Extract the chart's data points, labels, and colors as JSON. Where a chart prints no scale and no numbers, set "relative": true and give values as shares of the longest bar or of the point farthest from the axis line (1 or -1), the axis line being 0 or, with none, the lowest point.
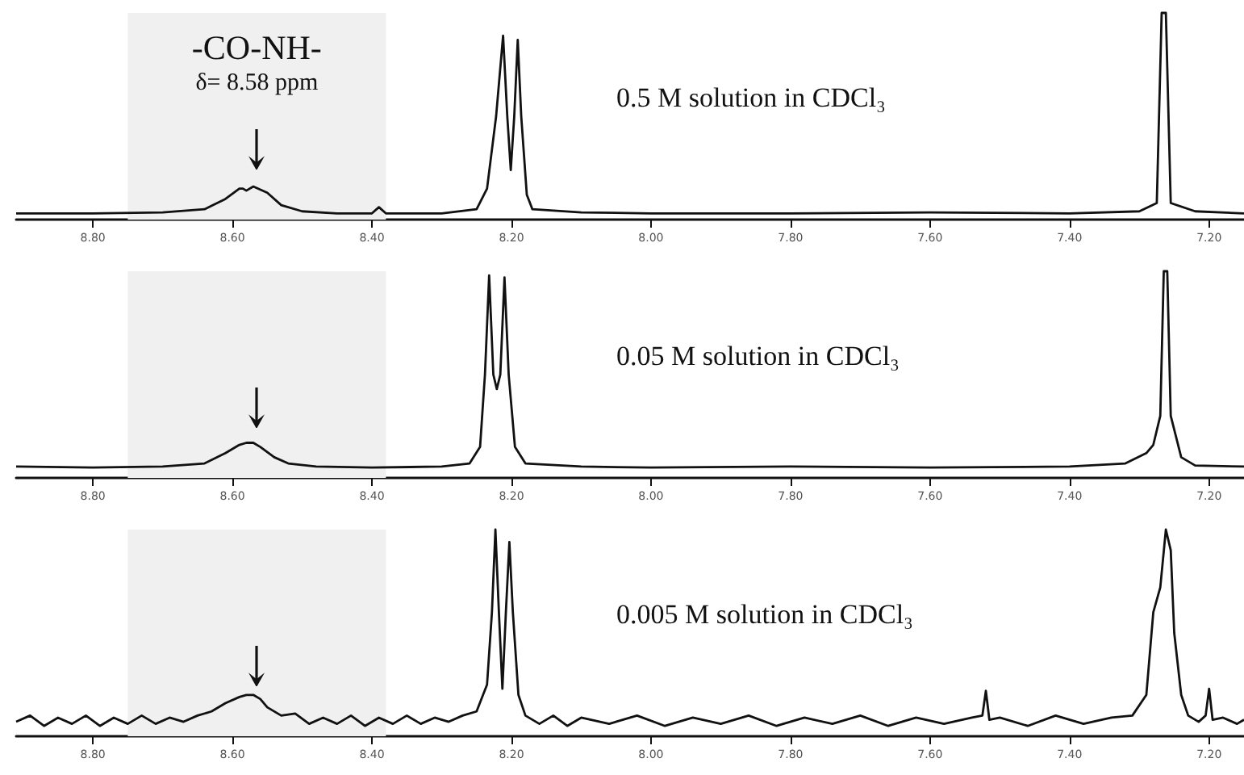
{
  "chart_data": [
    {
      "type": "line",
      "relative": true,
      "xlim": [
        8.91,
        7.15
      ],
      "xticks": [
        {
          "value": 8.8,
          "label": "8.80"
        },
        {
          "value": 8.6,
          "label": "8.60"
        },
        {
          "value": 8.4,
          "label": "8.40"
        },
        {
          "value": 8.2,
          "label": "8.20"
        },
        {
          "value": 8.0,
          "label": "8.00"
        },
        {
          "value": 7.8,
          "label": "7.80"
        },
        {
          "value": 7.6,
          "label": "7.60"
        },
        {
          "value": 7.4,
          "label": "7.40"
        },
        {
          "value": 7.2,
          "label": "7.20"
        }
      ],
      "tick_labels": "x",
      "marker": "none",
      "bands": [
        {
          "axis": "x",
          "from": 8.75,
          "to": 8.38,
          "color": "#f0f0f0"
        }
      ],
      "annotations": [
        "-CO-NH-",
        "δ= 8.58 ppm"
      ],
      "series": [
        {
          "name": "0.5 M solution in CDCl₃",
          "color": "#111111",
          "x": [
            8.91,
            8.8,
            8.7,
            8.64,
            8.61,
            8.59,
            8.585,
            8.58,
            8.57,
            8.55,
            8.53,
            8.5,
            8.45,
            8.4,
            8.39,
            8.38,
            8.3,
            8.25,
            8.235,
            8.222,
            8.212,
            8.206,
            8.201,
            8.196,
            8.191,
            8.186,
            8.178,
            8.17,
            8.1,
            8.0,
            7.8,
            7.6,
            7.4,
            7.3,
            7.275,
            7.268,
            7.262,
            7.255,
            7.22,
            7.15
          ],
          "values": [
            0.03,
            0.03,
            0.035,
            0.05,
            0.1,
            0.15,
            0.15,
            0.14,
            0.16,
            0.13,
            0.07,
            0.04,
            0.03,
            0.03,
            0.06,
            0.03,
            0.03,
            0.05,
            0.15,
            0.5,
            0.89,
            0.5,
            0.24,
            0.5,
            0.87,
            0.5,
            0.12,
            0.05,
            0.035,
            0.03,
            0.03,
            0.035,
            0.03,
            0.04,
            0.08,
            1,
            1,
            0.08,
            0.04,
            0.03
          ]
        }
      ]
    },
    {
      "type": "line",
      "relative": true,
      "xlim": [
        8.91,
        7.15
      ],
      "xticks": [
        {
          "value": 8.8,
          "label": "8.80"
        },
        {
          "value": 8.6,
          "label": "8.60"
        },
        {
          "value": 8.4,
          "label": "8.40"
        },
        {
          "value": 8.2,
          "label": "8.20"
        },
        {
          "value": 8.0,
          "label": "8.00"
        },
        {
          "value": 7.8,
          "label": "7.80"
        },
        {
          "value": 7.6,
          "label": "7.60"
        },
        {
          "value": 7.4,
          "label": "7.40"
        },
        {
          "value": 7.2,
          "label": "7.20"
        }
      ],
      "tick_labels": "x",
      "marker": "none",
      "bands": [
        {
          "axis": "x",
          "from": 8.75,
          "to": 8.38,
          "color": "#f0f0f0"
        }
      ],
      "series": [
        {
          "name": "0.05 M solution in CDCl₃",
          "color": "#111111",
          "x": [
            8.91,
            8.8,
            8.7,
            8.64,
            8.61,
            8.59,
            8.58,
            8.57,
            8.56,
            8.54,
            8.52,
            8.48,
            8.4,
            8.3,
            8.26,
            8.245,
            8.238,
            8.232,
            8.226,
            8.221,
            8.216,
            8.21,
            8.204,
            8.195,
            8.18,
            8.1,
            8.0,
            7.8,
            7.6,
            7.4,
            7.32,
            7.29,
            7.28,
            7.27,
            7.265,
            7.26,
            7.255,
            7.24,
            7.22,
            7.15
          ],
          "values": [
            0.055,
            0.05,
            0.055,
            0.07,
            0.12,
            0.16,
            0.17,
            0.17,
            0.15,
            0.1,
            0.07,
            0.055,
            0.05,
            0.055,
            0.07,
            0.15,
            0.5,
            0.98,
            0.5,
            0.43,
            0.5,
            0.97,
            0.5,
            0.15,
            0.07,
            0.055,
            0.05,
            0.055,
            0.05,
            0.055,
            0.07,
            0.12,
            0.16,
            0.3,
            1,
            1,
            0.3,
            0.1,
            0.06,
            0.055
          ]
        }
      ]
    },
    {
      "type": "line",
      "relative": true,
      "xlim": [
        8.91,
        7.15
      ],
      "xticks": [
        {
          "value": 8.8,
          "label": "8.80"
        },
        {
          "value": 8.6,
          "label": "8.60"
        },
        {
          "value": 8.4,
          "label": "8.40"
        },
        {
          "value": 8.2,
          "label": "8.20"
        },
        {
          "value": 8.0,
          "label": "8.00"
        },
        {
          "value": 7.8,
          "label": "7.80"
        },
        {
          "value": 7.6,
          "label": "7.60"
        },
        {
          "value": 7.4,
          "label": "7.40"
        },
        {
          "value": 7.2,
          "label": "7.20"
        }
      ],
      "tick_labels": "x",
      "marker": "none",
      "bands": [
        {
          "axis": "x",
          "from": 8.75,
          "to": 8.38,
          "color": "#f0f0f0"
        }
      ],
      "series": [
        {
          "name": "0.005 M solution in CDCl₃",
          "color": "#111111",
          "x": [
            8.91,
            8.89,
            8.87,
            8.85,
            8.83,
            8.81,
            8.79,
            8.77,
            8.75,
            8.73,
            8.71,
            8.69,
            8.67,
            8.65,
            8.63,
            8.61,
            8.59,
            8.58,
            8.57,
            8.56,
            8.55,
            8.53,
            8.51,
            8.49,
            8.47,
            8.45,
            8.43,
            8.41,
            8.39,
            8.37,
            8.35,
            8.33,
            8.31,
            8.29,
            8.27,
            8.25,
            8.235,
            8.228,
            8.223,
            8.218,
            8.213,
            8.208,
            8.203,
            8.198,
            8.19,
            8.18,
            8.16,
            8.14,
            8.12,
            8.1,
            8.06,
            8.02,
            7.98,
            7.94,
            7.9,
            7.86,
            7.82,
            7.78,
            7.74,
            7.7,
            7.66,
            7.62,
            7.58,
            7.54,
            7.525,
            7.52,
            7.515,
            7.5,
            7.46,
            7.42,
            7.38,
            7.34,
            7.31,
            7.29,
            7.28,
            7.27,
            7.262,
            7.255,
            7.25,
            7.24,
            7.23,
            7.215,
            7.205,
            7.2,
            7.195,
            7.18,
            7.16,
            7.15
          ],
          "values": [
            0.07,
            0.1,
            0.05,
            0.09,
            0.06,
            0.1,
            0.05,
            0.09,
            0.06,
            0.1,
            0.06,
            0.09,
            0.07,
            0.1,
            0.12,
            0.16,
            0.19,
            0.2,
            0.2,
            0.18,
            0.14,
            0.1,
            0.11,
            0.06,
            0.09,
            0.06,
            0.1,
            0.05,
            0.09,
            0.06,
            0.1,
            0.06,
            0.09,
            0.07,
            0.1,
            0.12,
            0.25,
            0.6,
            1,
            0.6,
            0.23,
            0.6,
            0.94,
            0.6,
            0.2,
            0.1,
            0.06,
            0.1,
            0.05,
            0.09,
            0.06,
            0.1,
            0.05,
            0.09,
            0.06,
            0.1,
            0.05,
            0.09,
            0.06,
            0.1,
            0.05,
            0.09,
            0.06,
            0.09,
            0.1,
            0.22,
            0.08,
            0.09,
            0.05,
            0.1,
            0.06,
            0.09,
            0.1,
            0.2,
            0.6,
            0.72,
            1,
            0.9,
            0.5,
            0.2,
            0.1,
            0.07,
            0.1,
            0.23,
            0.08,
            0.09,
            0.06,
            0.08
          ]
        }
      ]
    }
  ]
}
